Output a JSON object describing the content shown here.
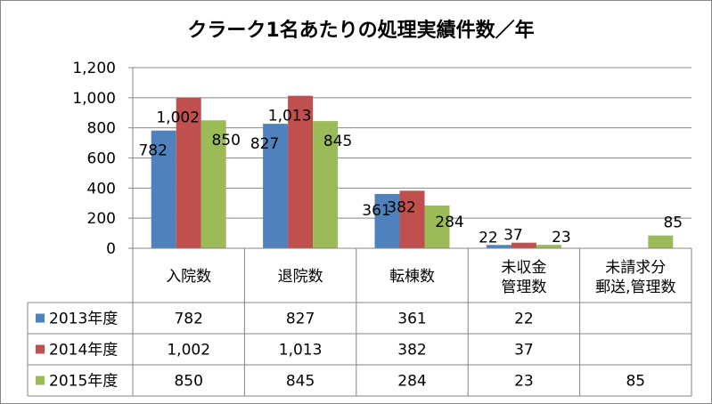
{
  "chart_data": {
    "type": "bar",
    "title": "クラーク1名あたりの処理実績件数／年",
    "categories": [
      [
        "入院数"
      ],
      [
        "退院数"
      ],
      [
        "転棟数"
      ],
      [
        "未収金",
        "管理数"
      ],
      [
        "未請求分",
        "郵送,管理数"
      ]
    ],
    "series": [
      {
        "name": "2013年度",
        "color": "#4F81BD",
        "values": [
          782,
          827,
          361,
          22,
          null
        ],
        "display": [
          "782",
          "827",
          "361",
          "22",
          ""
        ]
      },
      {
        "name": "2014年度",
        "color": "#C0504D",
        "values": [
          1002,
          1013,
          382,
          37,
          null
        ],
        "display": [
          "1,002",
          "1,013",
          "382",
          "37",
          ""
        ]
      },
      {
        "name": "2015年度",
        "color": "#9BBB59",
        "values": [
          850,
          845,
          284,
          23,
          85
        ],
        "display": [
          "850",
          "845",
          "284",
          "23",
          "85"
        ]
      }
    ],
    "ylim": [
      0,
      1200
    ],
    "yticks": [
      "0",
      "200",
      "400",
      "600",
      "800",
      "1,000",
      "1,200"
    ],
    "grid": true,
    "data_table": true
  }
}
